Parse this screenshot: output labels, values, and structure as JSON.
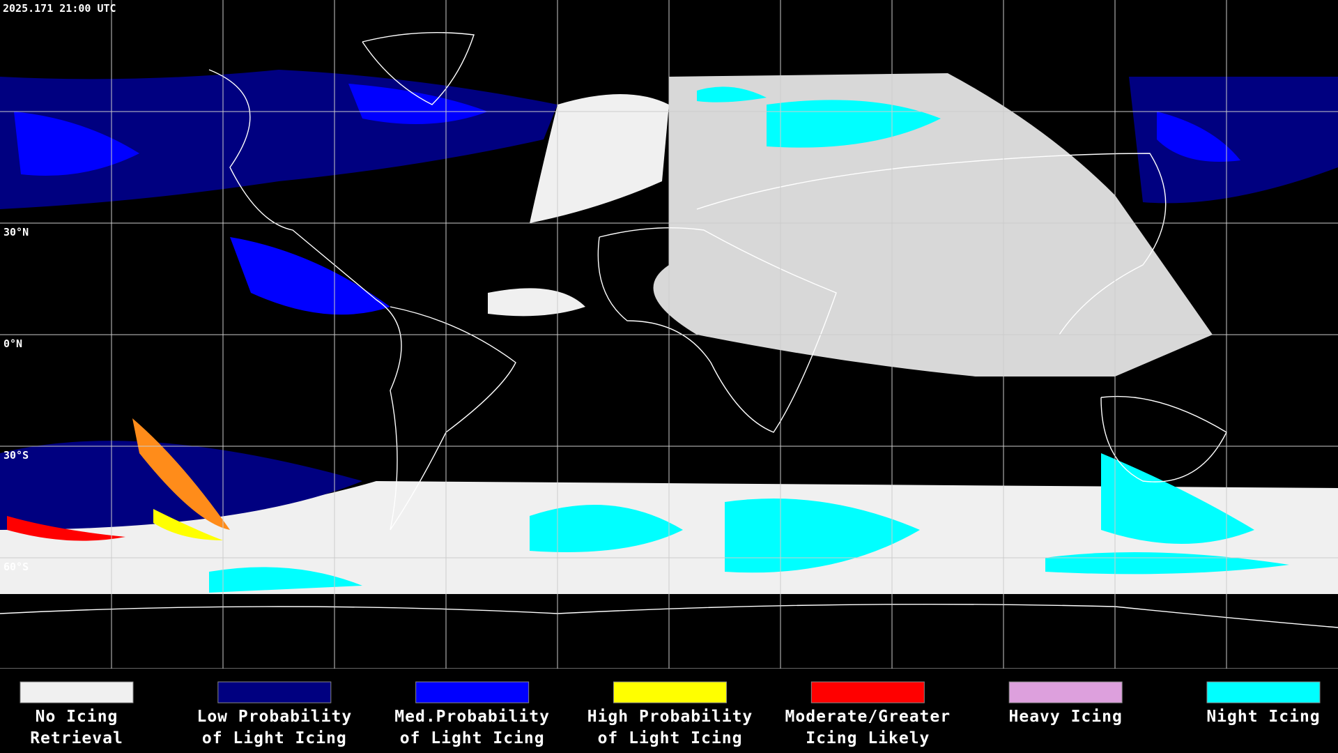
{
  "header": {
    "timestamp": "2025.171 21:00 UTC"
  },
  "map": {
    "latitude_labels": [
      "30°N",
      "0°N",
      "30°S",
      "60°S"
    ]
  },
  "legend": {
    "items": [
      {
        "label_lines": [
          "No Icing",
          "Retrieval"
        ],
        "color": "#f0f0f0"
      },
      {
        "label_lines": [
          "Low Probability",
          "of Light Icing"
        ],
        "color": "#000080"
      },
      {
        "label_lines": [
          "Med.Probability",
          "of Light Icing"
        ],
        "color": "#0000ff"
      },
      {
        "label_lines": [
          "High Probability",
          "of Light Icing"
        ],
        "color": "#ffff00"
      },
      {
        "label_lines": [
          "Moderate/Greater",
          "Icing Likely"
        ],
        "color": "#ff0000"
      },
      {
        "label_lines": [
          "Heavy Icing"
        ],
        "color": "#dda0dd"
      },
      {
        "label_lines": [
          "Night Icing"
        ],
        "color": "#00ffff"
      }
    ]
  }
}
